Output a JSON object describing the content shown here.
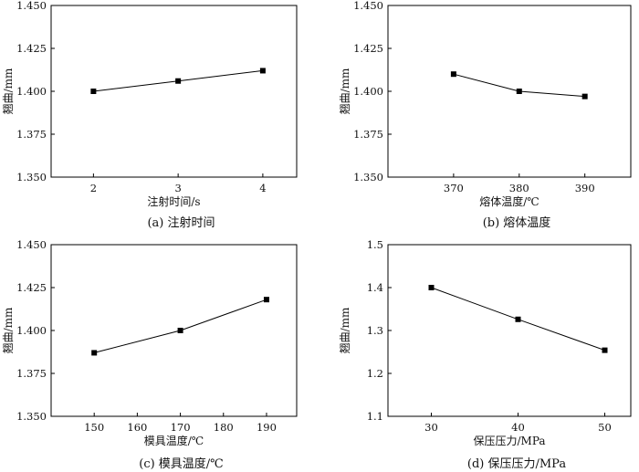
{
  "chart_data": [
    {
      "type": "line",
      "caption": "(a)  注射时间",
      "xlabel": "注射时间/s",
      "ylabel": "翘曲/mm",
      "x": [
        2,
        3,
        4
      ],
      "xticks": [
        "2",
        "3",
        "4"
      ],
      "xlim": [
        1.5,
        4.4
      ],
      "ylim": [
        1.35,
        1.45
      ],
      "yticks": [
        "1.350",
        "1.375",
        "1.400",
        "1.425",
        "1.450"
      ],
      "series": [
        {
          "values": [
            1.4,
            1.406,
            1.412
          ]
        }
      ]
    },
    {
      "type": "line",
      "caption": "(b)  熔体温度",
      "xlabel": "熔体温度/℃",
      "ylabel": "翘曲/mm",
      "x": [
        370,
        380,
        390
      ],
      "xticks": [
        "370",
        "380",
        "390"
      ],
      "xlim": [
        360,
        397
      ],
      "ylim": [
        1.35,
        1.45
      ],
      "yticks": [
        "1.350",
        "1.375",
        "1.400",
        "1.425",
        "1.450"
      ],
      "series": [
        {
          "values": [
            1.41,
            1.4,
            1.397
          ]
        }
      ]
    },
    {
      "type": "line",
      "caption": "(c)  模具温度/℃",
      "xlabel": "模具温度/℃",
      "ylabel": "翘曲/mm",
      "x": [
        150,
        170,
        190
      ],
      "xticks": [
        "150",
        "160",
        "170",
        "180",
        "190"
      ],
      "xtick_values": [
        150,
        160,
        170,
        180,
        190
      ],
      "xlim": [
        140,
        197
      ],
      "ylim": [
        1.35,
        1.45
      ],
      "yticks": [
        "1.350",
        "1.375",
        "1.400",
        "1.425",
        "1.450"
      ],
      "series": [
        {
          "values": [
            1.387,
            1.4,
            1.418
          ]
        }
      ]
    },
    {
      "type": "line",
      "caption": "(d)  保压压力/MPa",
      "xlabel": "保压压力/MPa",
      "ylabel": "翘曲/mm",
      "x": [
        30,
        40,
        50
      ],
      "xticks": [
        "30",
        "40",
        "50"
      ],
      "xlim": [
        25,
        53
      ],
      "ylim": [
        1.1,
        1.5
      ],
      "yticks": [
        "1.1",
        "1.2",
        "1.3",
        "1.4",
        "1.5"
      ],
      "series": [
        {
          "values": [
            1.4,
            1.326,
            1.254
          ]
        }
      ]
    }
  ]
}
